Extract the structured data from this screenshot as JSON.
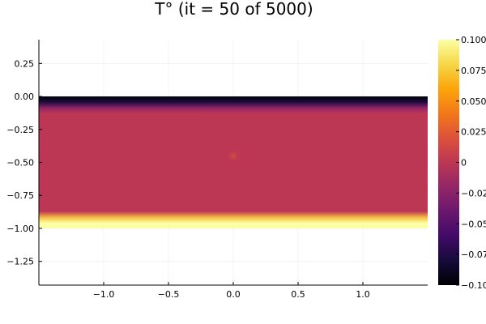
{
  "chart_data": {
    "type": "heatmap",
    "title": "T° (it = 50 of 5000)",
    "xlabel": "",
    "ylabel": "",
    "xlim": [
      -1.5,
      1.5
    ],
    "ylim": [
      -1.43,
      0.43
    ],
    "x_ticks": [
      -1.0,
      -0.5,
      0.0,
      0.5,
      1.0
    ],
    "x_tick_labels": [
      "−1.0",
      "−0.5",
      "0.0",
      "0.5",
      "1.0"
    ],
    "y_ticks": [
      0.25,
      0.0,
      -0.25,
      -0.5,
      -0.75,
      -1.0,
      -1.25
    ],
    "y_tick_labels": [
      "0.25",
      "0.00",
      "−0.25",
      "−0.50",
      "−0.75",
      "−1.00",
      "−1.25"
    ],
    "grid": true,
    "colormap": "inferno",
    "colorbar": {
      "range": [
        -0.1,
        0.1
      ],
      "ticks": [
        0.1,
        0.075,
        0.05,
        0.025,
        0,
        -0.025,
        -0.05,
        -0.075,
        -0.1
      ],
      "tick_labels": [
        "0.100",
        "0.075",
        "0.050",
        "0.025",
        "0",
        "−0.025",
        "−0.050",
        "−0.075",
        "−0.100"
      ]
    },
    "field": {
      "x_range": [
        -1.5,
        1.5
      ],
      "y_range": [
        -1.0,
        0.0
      ],
      "top_value": -0.1,
      "bottom_value": 0.1,
      "interior_value": 0.0,
      "hotspot": {
        "x": 0.0,
        "y": -0.45,
        "value": 0.01
      }
    }
  }
}
